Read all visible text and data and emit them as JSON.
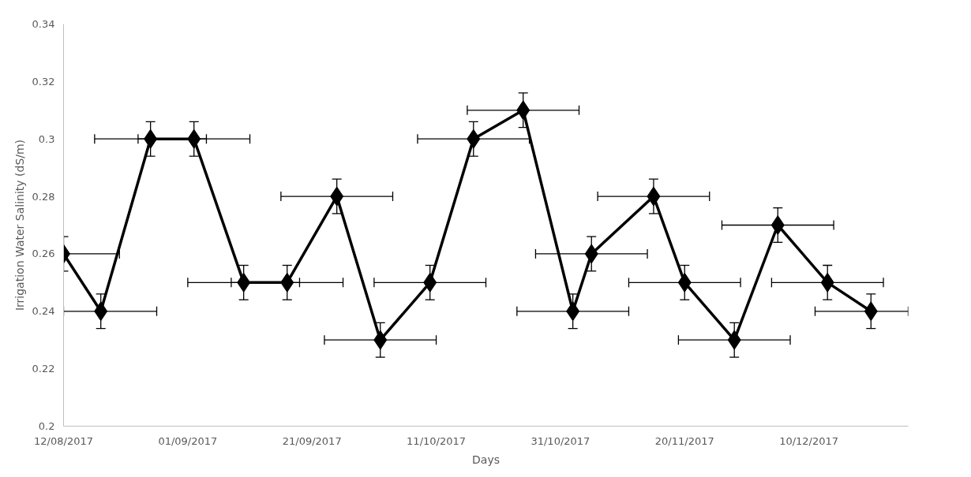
{
  "chart_data": {
    "type": "line",
    "xlabel": "Days",
    "ylabel": "Irrigation Water Salinity (dS/m)",
    "x": [
      "2017-08-12",
      "2017-08-18",
      "2017-08-26",
      "2017-09-02",
      "2017-09-10",
      "2017-09-17",
      "2017-09-25",
      "2017-10-02",
      "2017-10-10",
      "2017-10-17",
      "2017-10-25",
      "2017-11-02",
      "2017-11-05",
      "2017-11-15",
      "2017-11-20",
      "2017-11-28",
      "2017-12-05",
      "2017-12-13",
      "2017-12-20"
    ],
    "series": [
      {
        "color": "#000000",
        "values": [
          0.26,
          0.24,
          0.3,
          0.3,
          0.25,
          0.25,
          0.28,
          0.23,
          0.25,
          0.3,
          0.31,
          0.24,
          0.26,
          0.28,
          0.25,
          0.23,
          0.27,
          0.25,
          0.24
        ],
        "errors": [
          0.006,
          0.006,
          0.006,
          0.006,
          0.006,
          0.006,
          0.006,
          0.006,
          0.006,
          0.006,
          0.006,
          0.006,
          0.006,
          0.006,
          0.006,
          0.006,
          0.006,
          0.006,
          0.006
        ],
        "xerrors": [
          [
            17390,
            17399
          ],
          [
            17390,
            17405
          ],
          9,
          9,
          9,
          9,
          9,
          9,
          9,
          9,
          9,
          9,
          9,
          9,
          9,
          9,
          9,
          9,
          [
            17511,
            17526
          ]
        ]
      }
    ],
    "xlim": [
      "2017-08-12",
      "2017-12-26"
    ],
    "xticks": [
      {
        "value": "2017-08-12",
        "label": "12/08/2017"
      },
      {
        "value": "2017-09-01",
        "label": "01/09/2017"
      },
      {
        "value": "2017-09-21",
        "label": "21/09/2017"
      },
      {
        "value": "2017-10-11",
        "label": "11/10/2017"
      },
      {
        "value": "2017-10-31",
        "label": "31/10/2017"
      },
      {
        "value": "2017-11-20",
        "label": "20/11/2017"
      },
      {
        "value": "2017-12-10",
        "label": "10/12/2017"
      }
    ],
    "ylim": [
      0.2,
      0.34
    ],
    "yticks": [
      0.2,
      0.22,
      0.24,
      0.26,
      0.28,
      0.3,
      0.32,
      0.34
    ],
    "grid": false,
    "marker": "diamond",
    "line_style": "solid"
  }
}
